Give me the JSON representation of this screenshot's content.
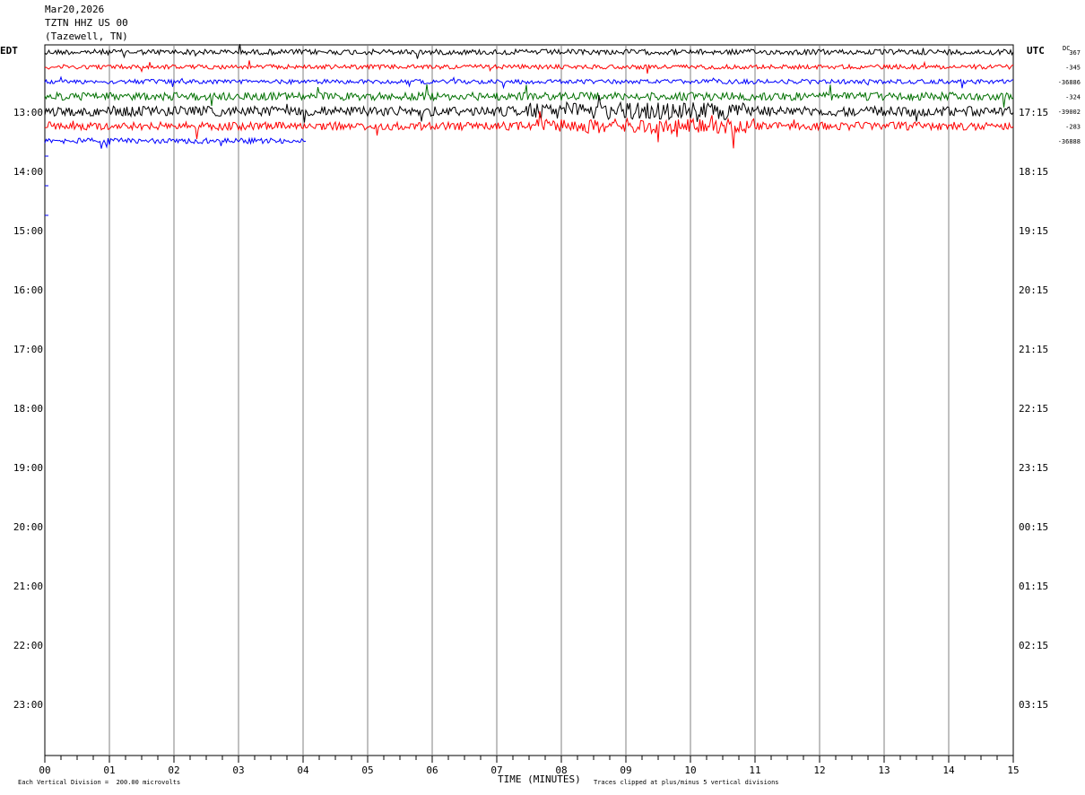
{
  "header": {
    "date": "Mar20,2026",
    "station": "TZTN HHZ US 00",
    "location": "(Tazewell, TN)"
  },
  "left_zone_label": "EDT",
  "right_zone_label": "UTC",
  "dc_label": "DC",
  "chart_data": {
    "type": "line",
    "title": "",
    "xlabel": "TIME (MINUTES)",
    "x_ticks": [
      "00",
      "01",
      "02",
      "03",
      "04",
      "05",
      "06",
      "07",
      "08",
      "09",
      "10",
      "11",
      "12",
      "13",
      "14",
      "15"
    ],
    "xlim": [
      0,
      15
    ],
    "left_time_labels": [
      "13:00",
      "14:00",
      "15:00",
      "16:00",
      "17:00",
      "18:00",
      "19:00",
      "20:00",
      "21:00",
      "22:00",
      "23:00"
    ],
    "right_time_labels": [
      "17:15",
      "18:15",
      "19:15",
      "20:15",
      "21:15",
      "22:15",
      "23:15",
      "00:15",
      "01:15",
      "02:15",
      "03:15"
    ],
    "dc_offsets": [
      "367",
      "-345",
      "-36886",
      "-324",
      "-39002",
      "-283",
      "-36888"
    ],
    "scale_note": "Each Vertical Division =  200.00 microvolts",
    "clip_note": "Traces clipped at plus/minus 5 vertical divisions",
    "grid": true,
    "series": [
      {
        "color": "#000000",
        "minutes_recorded": 15
      },
      {
        "color": "#ff0000",
        "minutes_recorded": 15
      },
      {
        "color": "#0000ff",
        "minutes_recorded": 15
      },
      {
        "color": "#007000",
        "minutes_recorded": 15
      },
      {
        "color": "#000000",
        "minutes_recorded": 15
      },
      {
        "color": "#ff0000",
        "minutes_recorded": 15
      },
      {
        "color": "#0000ff",
        "minutes_recorded": 4.05
      }
    ]
  }
}
